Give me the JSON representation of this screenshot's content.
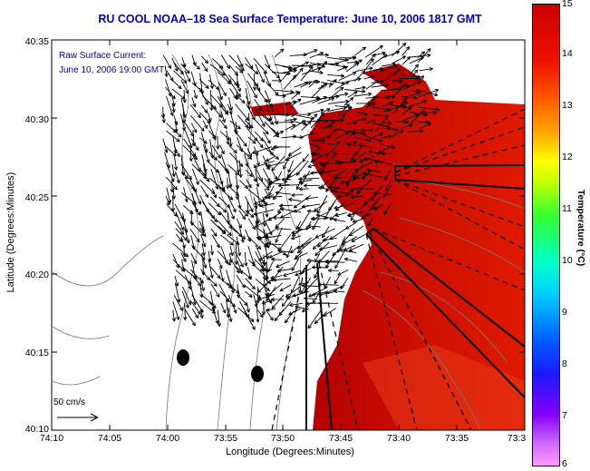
{
  "title": "RU COOL  NOAA–18  Sea Surface Temperature:  June 10, 2006 1817 GMT",
  "annotation_line1": "Raw Surface Current:",
  "annotation_line2": "June 10, 2006 19:00 GMT",
  "scale_label": "50 cm/s",
  "axes": {
    "xlabel": "Longitude (Degrees:Minutes)",
    "ylabel": "Latitude (Degrees:Minutes)",
    "xticks": [
      "74:10",
      "74:05",
      "74:00",
      "73:55",
      "73:50",
      "73:45",
      "73:40",
      "73:35",
      "73:3"
    ],
    "yticks": [
      "40:35",
      "40:30",
      "40:25",
      "40:20",
      "40:15",
      "40:10"
    ]
  },
  "colorbar": {
    "label": "Temperature (°C)",
    "ticks": [
      "15",
      "14",
      "13",
      "12",
      "11",
      "10",
      "9",
      "8",
      "7",
      "6"
    ]
  },
  "colors": {
    "title": "#0000cc",
    "sst_warm": "#dd1100",
    "sst_hot": "#aa0000"
  }
}
